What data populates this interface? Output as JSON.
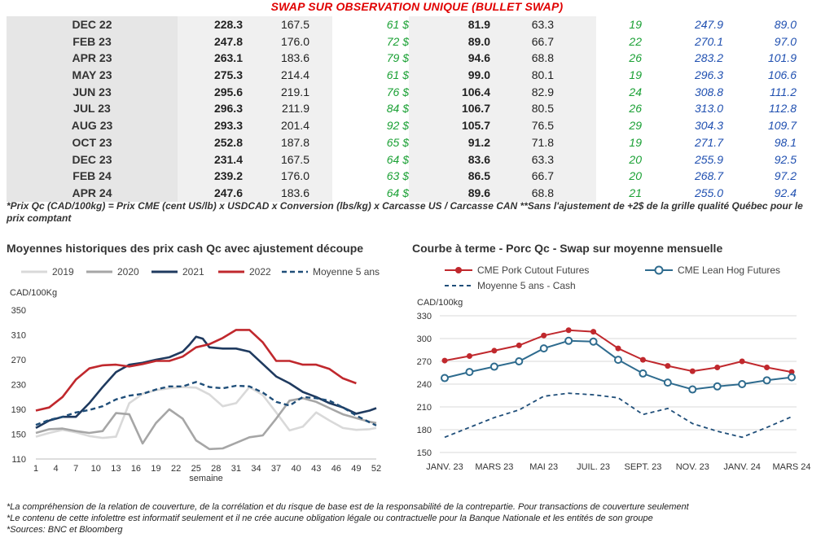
{
  "header": {
    "title": "SWAP SUR OBSERVATION UNIQUE (BULLET SWAP)"
  },
  "table": {
    "rows": [
      {
        "label": "DEC 22",
        "a": "228.3",
        "b": "167.5",
        "c": "61 $",
        "d": "81.9",
        "e": "63.3",
        "f": "19",
        "g": "247.9",
        "h": "89.0"
      },
      {
        "label": "FEB 23",
        "a": "247.8",
        "b": "176.0",
        "c": "72 $",
        "d": "89.0",
        "e": "66.7",
        "f": "22",
        "g": "270.1",
        "h": "97.0"
      },
      {
        "label": "APR 23",
        "a": "263.1",
        "b": "183.6",
        "c": "79 $",
        "d": "94.6",
        "e": "68.8",
        "f": "26",
        "g": "283.2",
        "h": "101.9"
      },
      {
        "label": "MAY 23",
        "a": "275.3",
        "b": "214.4",
        "c": "61 $",
        "d": "99.0",
        "e": "80.1",
        "f": "19",
        "g": "296.3",
        "h": "106.6"
      },
      {
        "label": "JUN 23",
        "a": "295.6",
        "b": "219.1",
        "c": "76 $",
        "d": "106.4",
        "e": "82.9",
        "f": "24",
        "g": "308.8",
        "h": "111.2"
      },
      {
        "label": "JUL 23",
        "a": "296.3",
        "b": "211.9",
        "c": "84 $",
        "d": "106.7",
        "e": "80.5",
        "f": "26",
        "g": "313.0",
        "h": "112.8"
      },
      {
        "label": "AUG 23",
        "a": "293.3",
        "b": "201.4",
        "c": "92 $",
        "d": "105.7",
        "e": "76.5",
        "f": "29",
        "g": "304.3",
        "h": "109.7"
      },
      {
        "label": "OCT 23",
        "a": "252.8",
        "b": "187.8",
        "c": "65 $",
        "d": "91.2",
        "e": "71.8",
        "f": "19",
        "g": "271.7",
        "h": "98.1"
      },
      {
        "label": "DEC 23",
        "a": "231.4",
        "b": "167.5",
        "c": "64 $",
        "d": "83.6",
        "e": "63.3",
        "f": "20",
        "g": "255.9",
        "h": "92.5"
      },
      {
        "label": "FEB 24",
        "a": "239.2",
        "b": "176.0",
        "c": "63 $",
        "d": "86.5",
        "e": "66.7",
        "f": "20",
        "g": "268.7",
        "h": "97.2"
      },
      {
        "label": "APR 24",
        "a": "247.6",
        "b": "183.6",
        "c": "64 $",
        "d": "89.6",
        "e": "68.8",
        "f": "21",
        "g": "255.0",
        "h": "92.4"
      }
    ]
  },
  "note": "*Prix Qc (CAD/100kg) = Prix CME (cent US/lb) x USDCAD x Conversion (lbs/kg) x Carcasse US / Carcasse CAN **Sans l'ajustement de +2$ de la grille qualité Québec pour le prix comptant",
  "colors": {
    "c2019": "#d9d9d9",
    "c2020": "#a6a6a6",
    "c2021": "#1f3a5f",
    "c2022": "#c0282d",
    "cavg": "#1f4e79",
    "cutout": "#c0282d",
    "lean": "#2e6b8e",
    "avgcash": "#1f4e79"
  },
  "footer": {
    "line1": "*La compréhension de la relation de couverture, de la corrélation et du risque de base est de la responsabilité de la contrepartie. Pour transactions de couverture seulement",
    "line2": "*Le contenu de cette infolettre est informatif seulement et il ne crée aucune obligation légale ou contractuelle pour la Banque Nationale et les entités de son groupe",
    "line3": "*Sources: BNC et Bloomberg"
  },
  "chart_data": [
    {
      "type": "line",
      "title": "Moyennes historiques des prix cash Qc avec ajustement découpe",
      "ylabel": "CAD/100Kg",
      "xlabel": "semaine",
      "ylim": [
        110,
        350
      ],
      "yticks": [
        "110",
        "150",
        "190",
        "230",
        "270",
        "310",
        "350"
      ],
      "xlim": [
        1,
        52
      ],
      "xticks": [
        "1",
        "4",
        "7",
        "10",
        "13",
        "16",
        "19",
        "22",
        "25",
        "28",
        "31",
        "34",
        "37",
        "40",
        "43",
        "46",
        "49",
        "52"
      ],
      "grid": false,
      "legend": "top",
      "series": [
        {
          "name": "2019",
          "x": [
            1,
            3,
            5,
            7,
            9,
            11,
            13,
            15,
            17,
            19,
            21,
            23,
            25,
            27,
            29,
            31,
            33,
            35,
            37,
            39,
            41,
            43,
            45,
            47,
            49,
            51,
            52
          ],
          "y": [
            146,
            152,
            157,
            153,
            147,
            144,
            146,
            200,
            215,
            221,
            224,
            226,
            225,
            214,
            195,
            200,
            226,
            213,
            185,
            156,
            162,
            185,
            172,
            160,
            157,
            158,
            160
          ]
        },
        {
          "name": "2020",
          "x": [
            1,
            3,
            5,
            7,
            9,
            11,
            13,
            15,
            17,
            19,
            21,
            23,
            25,
            27,
            29,
            31,
            33,
            35,
            37,
            39,
            41,
            43,
            45,
            47,
            49,
            51,
            52
          ],
          "y": [
            152,
            158,
            159,
            155,
            152,
            155,
            184,
            182,
            135,
            168,
            190,
            175,
            140,
            126,
            127,
            136,
            145,
            148,
            175,
            204,
            208,
            202,
            192,
            182,
            176,
            170,
            168
          ]
        },
        {
          "name": "2021",
          "x": [
            1,
            3,
            5,
            7,
            9,
            11,
            13,
            15,
            17,
            19,
            21,
            23,
            24,
            25,
            26,
            27,
            29,
            31,
            33,
            35,
            37,
            39,
            41,
            43,
            45,
            47,
            49,
            51,
            52
          ],
          "y": [
            160,
            172,
            178,
            178,
            200,
            226,
            250,
            262,
            265,
            270,
            274,
            283,
            294,
            307,
            304,
            290,
            288,
            288,
            283,
            263,
            243,
            232,
            218,
            210,
            200,
            193,
            183,
            188,
            192
          ]
        },
        {
          "name": "2022",
          "x": [
            1,
            3,
            5,
            7,
            9,
            11,
            13,
            15,
            17,
            19,
            21,
            23,
            25,
            27,
            29,
            31,
            33,
            35,
            37,
            39,
            41,
            43,
            45,
            47,
            49
          ],
          "y": [
            188,
            193,
            210,
            238,
            256,
            261,
            262,
            259,
            263,
            268,
            268,
            275,
            290,
            295,
            305,
            318,
            318,
            298,
            268,
            268,
            262,
            262,
            255,
            240,
            232
          ]
        },
        {
          "name": "Moyenne 5 ans",
          "x": [
            1,
            3,
            5,
            7,
            9,
            11,
            13,
            15,
            17,
            19,
            21,
            23,
            25,
            27,
            29,
            31,
            33,
            35,
            37,
            39,
            41,
            43,
            45,
            47,
            49,
            51,
            52
          ],
          "y": [
            165,
            173,
            178,
            185,
            189,
            195,
            206,
            212,
            215,
            222,
            227,
            227,
            234,
            226,
            224,
            228,
            227,
            217,
            202,
            196,
            210,
            208,
            204,
            193,
            180,
            169,
            164
          ]
        }
      ]
    },
    {
      "type": "line",
      "title": "Courbe à terme - Porc Qc - Swap sur moyenne mensuelle",
      "ylabel": "CAD/100kg",
      "ylim": [
        150,
        330
      ],
      "yticks": [
        "150",
        "180",
        "210",
        "240",
        "270",
        "300",
        "330"
      ],
      "xticks": [
        "JANV. 23",
        "MARS 23",
        "MAI 23",
        "JUIL. 23",
        "SEPT. 23",
        "NOV. 23",
        "JANV. 24",
        "MARS 24"
      ],
      "grid": true,
      "legend": "top",
      "categories": [
        "JAN 23",
        "FEB 23",
        "MAR 23",
        "APR 23",
        "MAY 23",
        "JUN 23",
        "JUL 23",
        "AUG 23",
        "SEP 23",
        "OCT 23",
        "NOV 23",
        "DEC 23",
        "JAN 24",
        "FEB 24",
        "MAR 24"
      ],
      "series": [
        {
          "name": "CME Pork Cutout Futures",
          "values": [
            271,
            277,
            284,
            291,
            304,
            311,
            309,
            287,
            272,
            264,
            257,
            262,
            270,
            262,
            256
          ]
        },
        {
          "name": "CME Lean Hog Futures",
          "values": [
            248,
            256,
            263,
            270,
            287,
            297,
            296,
            272,
            254,
            242,
            233,
            237,
            240,
            245,
            249
          ]
        },
        {
          "name": "Moyenne 5 ans - Cash",
          "values": [
            170,
            183,
            196,
            206,
            224,
            228,
            226,
            222,
            200,
            208,
            188,
            178,
            170,
            183,
            197
          ]
        }
      ]
    }
  ]
}
